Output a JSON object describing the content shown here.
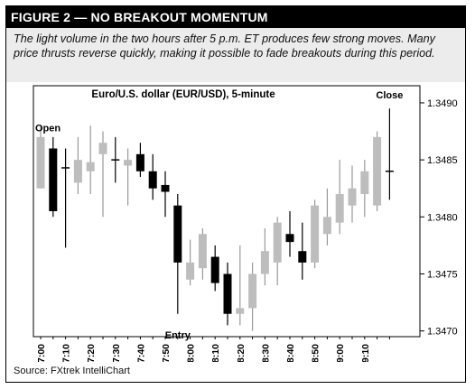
{
  "figure": {
    "header": "FIGURE 2 — NO BREAKOUT MOMENTUM",
    "caption": "The light volume in the two hours after 5 p.m. ET produces few strong moves. Many price thrusts reverse quickly, making it possible to fade breakouts during this period.",
    "source": "Source: FXtrek IntelliChart"
  },
  "chart_data": {
    "type": "candlestick",
    "title": "Euro/U.S. dollar (EUR/USD), 5-minute",
    "y_ticks": [
      "1.3470",
      "1.3475",
      "1.3480",
      "1.3485",
      "1.3490"
    ],
    "ylim": [
      1.34695,
      1.34915
    ],
    "x_tick_labels": [
      "17:00",
      "17:10",
      "17:20",
      "17:30",
      "17:40",
      "17:50",
      "18:00",
      "18:10",
      "18:20",
      "18:30",
      "18:40",
      "18:50",
      "19:00",
      "19:10"
    ],
    "colors": {
      "up": "#bdbdbd",
      "down": "#000000"
    },
    "candles": [
      {
        "time": "17:00",
        "open": 1.34825,
        "high": 1.3488,
        "low": 1.34825,
        "close": 1.3487,
        "dir": "up"
      },
      {
        "time": "17:05",
        "open": 1.3486,
        "high": 1.3487,
        "low": 1.348,
        "close": 1.34805,
        "dir": "down"
      },
      {
        "time": "17:10",
        "open": 1.34843,
        "high": 1.3486,
        "low": 1.34773,
        "close": 1.34843,
        "dir": "doji"
      },
      {
        "time": "17:15",
        "open": 1.3483,
        "high": 1.3487,
        "low": 1.3482,
        "close": 1.3485,
        "dir": "up"
      },
      {
        "time": "17:20",
        "open": 1.3484,
        "high": 1.3488,
        "low": 1.3482,
        "close": 1.34848,
        "dir": "up"
      },
      {
        "time": "17:25",
        "open": 1.34855,
        "high": 1.34875,
        "low": 1.348,
        "close": 1.34865,
        "dir": "up"
      },
      {
        "time": "17:30",
        "open": 1.3485,
        "high": 1.3487,
        "low": 1.3483,
        "close": 1.3485,
        "dir": "doji"
      },
      {
        "time": "17:35",
        "open": 1.34845,
        "high": 1.3486,
        "low": 1.3481,
        "close": 1.3485,
        "dir": "up"
      },
      {
        "time": "17:40",
        "open": 1.34855,
        "high": 1.34865,
        "low": 1.34835,
        "close": 1.3484,
        "dir": "down"
      },
      {
        "time": "17:45",
        "open": 1.3484,
        "high": 1.34855,
        "low": 1.34815,
        "close": 1.34825,
        "dir": "down"
      },
      {
        "time": "17:50",
        "open": 1.34828,
        "high": 1.3484,
        "low": 1.348,
        "close": 1.34822,
        "dir": "down"
      },
      {
        "time": "17:55",
        "open": 1.3481,
        "high": 1.3482,
        "low": 1.34715,
        "close": 1.3476,
        "dir": "down"
      },
      {
        "time": "18:00",
        "open": 1.34745,
        "high": 1.3478,
        "low": 1.3474,
        "close": 1.3476,
        "dir": "up"
      },
      {
        "time": "18:05",
        "open": 1.34755,
        "high": 1.3479,
        "low": 1.34745,
        "close": 1.34785,
        "dir": "up"
      },
      {
        "time": "18:10",
        "open": 1.34765,
        "high": 1.34775,
        "low": 1.34735,
        "close": 1.34742,
        "dir": "down"
      },
      {
        "time": "18:15",
        "open": 1.3475,
        "high": 1.3476,
        "low": 1.34705,
        "close": 1.34715,
        "dir": "down"
      },
      {
        "time": "18:20",
        "open": 1.34715,
        "high": 1.34775,
        "low": 1.34705,
        "close": 1.3472,
        "dir": "up"
      },
      {
        "time": "18:25",
        "open": 1.3472,
        "high": 1.3476,
        "low": 1.347,
        "close": 1.3475,
        "dir": "up"
      },
      {
        "time": "18:30",
        "open": 1.3475,
        "high": 1.3479,
        "low": 1.3474,
        "close": 1.3477,
        "dir": "up"
      },
      {
        "time": "18:35",
        "open": 1.3476,
        "high": 1.348,
        "low": 1.3474,
        "close": 1.34795,
        "dir": "up"
      },
      {
        "time": "18:40",
        "open": 1.34785,
        "high": 1.34805,
        "low": 1.34765,
        "close": 1.34778,
        "dir": "down"
      },
      {
        "time": "18:45",
        "open": 1.3477,
        "high": 1.34795,
        "low": 1.34745,
        "close": 1.3476,
        "dir": "down"
      },
      {
        "time": "18:50",
        "open": 1.3476,
        "high": 1.34815,
        "low": 1.34755,
        "close": 1.3481,
        "dir": "up"
      },
      {
        "time": "18:55",
        "open": 1.34785,
        "high": 1.34825,
        "low": 1.34775,
        "close": 1.348,
        "dir": "up"
      },
      {
        "time": "19:00",
        "open": 1.34795,
        "high": 1.3485,
        "low": 1.34785,
        "close": 1.3482,
        "dir": "up"
      },
      {
        "time": "19:05",
        "open": 1.3481,
        "high": 1.34845,
        "low": 1.34795,
        "close": 1.34825,
        "dir": "up"
      },
      {
        "time": "19:10",
        "open": 1.3482,
        "high": 1.3485,
        "low": 1.348,
        "close": 1.3484,
        "dir": "up"
      },
      {
        "time": "19:15",
        "open": 1.3481,
        "high": 1.34875,
        "low": 1.34805,
        "close": 1.3487,
        "dir": "up"
      },
      {
        "time": "19:20",
        "open": 1.3484,
        "high": 1.34895,
        "low": 1.34815,
        "close": 1.3484,
        "dir": "doji"
      }
    ],
    "annotations": [
      {
        "text": "Open",
        "candle": 0,
        "price": 1.34875
      },
      {
        "text": "Entry",
        "candle": 11,
        "price": 1.34703
      },
      {
        "text": "Close",
        "candle": 28,
        "price": 1.34907
      }
    ]
  }
}
